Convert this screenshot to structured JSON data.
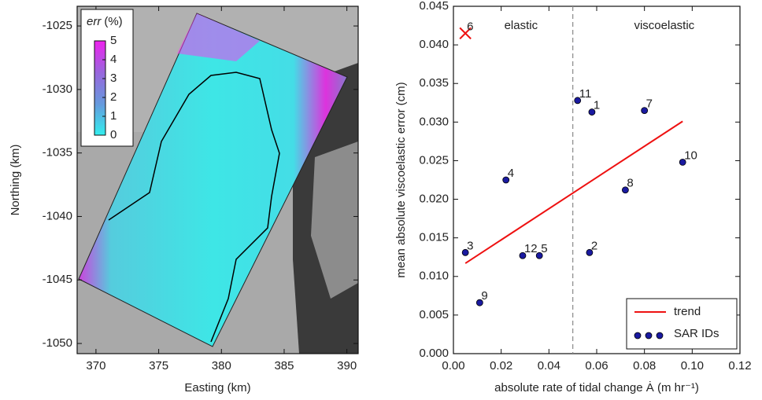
{
  "chart_data": [
    {
      "type": "map",
      "xlabel": "Easting (km)",
      "ylabel": "Northing (km)",
      "xlim": [
        368.5,
        390.9
      ],
      "ylim": [
        -1050.8,
        -1023.45
      ],
      "xticks": [
        370,
        375,
        380,
        385,
        390
      ],
      "yticks": [
        -1050,
        -1045,
        -1040,
        -1035,
        -1030,
        -1025
      ],
      "colorbar": {
        "label_var": "err",
        "label_unit": "(%)",
        "lim": [
          0,
          5
        ],
        "ticks": [
          0,
          1,
          2,
          3,
          4,
          5
        ],
        "colors": [
          "#33eeee",
          "#6699dd",
          "#9966dd",
          "#ee22ee"
        ]
      }
    },
    {
      "type": "scatter",
      "xlabel": "absolute rate of tidal change Ȧ (m hr⁻¹)",
      "ylabel": "mean absolute viscoelastic error (cm)",
      "xlim": [
        0,
        0.12
      ],
      "ylim": [
        0,
        0.045
      ],
      "xticks": [
        {
          "value": 0,
          "label": "0.00"
        },
        {
          "value": 0.02,
          "label": "0.02"
        },
        {
          "value": 0.04,
          "label": "0.04"
        },
        {
          "value": 0.06,
          "label": "0.06"
        },
        {
          "value": 0.08,
          "label": "0.08"
        },
        {
          "value": 0.1,
          "label": "0.10"
        },
        {
          "value": 0.12,
          "label": "0.12"
        }
      ],
      "yticks": [
        {
          "value": 0,
          "label": "0.000"
        },
        {
          "value": 0.005,
          "label": "0.005"
        },
        {
          "value": 0.01,
          "label": "0.010"
        },
        {
          "value": 0.015,
          "label": "0.015"
        },
        {
          "value": 0.02,
          "label": "0.020"
        },
        {
          "value": 0.025,
          "label": "0.025"
        },
        {
          "value": 0.03,
          "label": "0.030"
        },
        {
          "value": 0.035,
          "label": "0.035"
        },
        {
          "value": 0.04,
          "label": "0.040"
        },
        {
          "value": 0.045,
          "label": "0.045"
        }
      ],
      "vline": 0.05,
      "regions": [
        "elastic",
        "viscoelastic"
      ],
      "legend": "lower right",
      "series": [
        {
          "name": "trend",
          "kind": "line",
          "color": "#ee1111",
          "x": [
            0.005,
            0.096
          ],
          "values": [
            0.0117,
            0.0301
          ]
        },
        {
          "name": "SAR IDs",
          "kind": "points",
          "color": "#1a1aa0",
          "point_labels": [
            "1",
            "2",
            "3",
            "4",
            "5",
            "6",
            "7",
            "8",
            "9",
            "10",
            "11",
            "12"
          ],
          "x": [
            0.058,
            0.057,
            0.005,
            0.022,
            0.036,
            0.005,
            0.08,
            0.072,
            0.011,
            0.096,
            0.052,
            0.029
          ],
          "values": [
            0.0313,
            0.0131,
            0.0131,
            0.0225,
            0.0127,
            0.0415,
            0.0315,
            0.0212,
            0.0066,
            0.0248,
            0.0328,
            0.0127
          ],
          "markers": [
            "o",
            "o",
            "o",
            "o",
            "o",
            "x",
            "o",
            "o",
            "o",
            "o",
            "o",
            "o"
          ],
          "x_color": "#ee1111"
        }
      ]
    }
  ]
}
